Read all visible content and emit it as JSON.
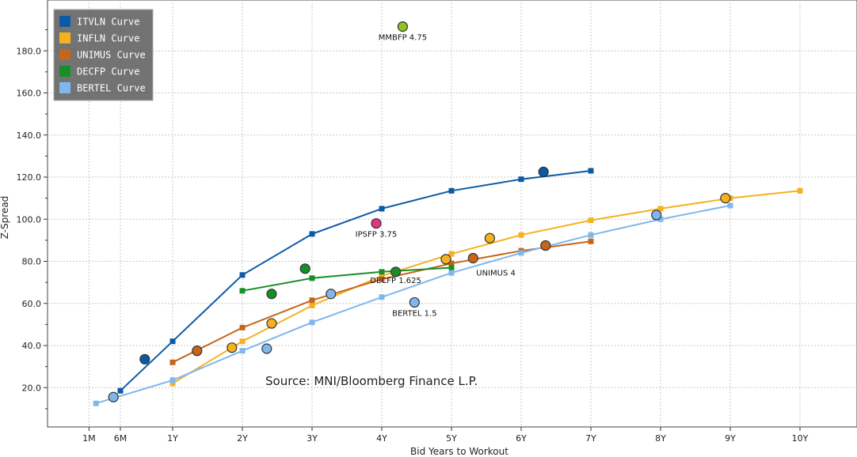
{
  "chart_data": {
    "type": "line",
    "title": "",
    "xlabel": "Bid Years to Workout",
    "ylabel": "Z-Spread",
    "xlim": [
      -1.0,
      10.6
    ],
    "ylim": [
      0,
      200
    ],
    "x_ticks": [
      {
        "label": "1M",
        "value": -0.2
      },
      {
        "label": "6M",
        "value": 0.25
      },
      {
        "label": "1Y",
        "value": 1
      },
      {
        "label": "2Y",
        "value": 2
      },
      {
        "label": "3Y",
        "value": 3
      },
      {
        "label": "4Y",
        "value": 4
      },
      {
        "label": "5Y",
        "value": 5
      },
      {
        "label": "6Y",
        "value": 6
      },
      {
        "label": "7Y",
        "value": 7
      },
      {
        "label": "8Y",
        "value": 8
      },
      {
        "label": "9Y",
        "value": 9
      },
      {
        "label": "10Y",
        "value": 10
      }
    ],
    "y_ticks": [
      {
        "label": "20.0",
        "value": 20
      },
      {
        "label": "40.0",
        "value": 40
      },
      {
        "label": "60.0",
        "value": 60
      },
      {
        "label": "80.0",
        "value": 80
      },
      {
        "label": "100.0",
        "value": 100
      },
      {
        "label": "120.0",
        "value": 120
      },
      {
        "label": "140.0",
        "value": 140
      },
      {
        "label": "160.0",
        "value": 160
      },
      {
        "label": "180.0",
        "value": 180
      }
    ],
    "grid": true,
    "legend_position": "top-left",
    "series": [
      {
        "name": "ITVLN Curve",
        "color": "#0c5aa6",
        "x": [
          0.25,
          1,
          2,
          3,
          4,
          5,
          6,
          7
        ],
        "y": [
          18.5,
          42,
          73.5,
          93,
          105,
          113.5,
          119,
          123
        ],
        "bonds": [
          {
            "x": 0.6,
            "y": 33.5
          },
          {
            "x": 6.32,
            "y": 122.5
          }
        ]
      },
      {
        "name": "INFLN Curve",
        "color": "#f6b120",
        "x": [
          1,
          2,
          3,
          4,
          5,
          6,
          7,
          8,
          9,
          10
        ],
        "y": [
          22,
          42,
          59,
          73,
          83.5,
          92.5,
          99.5,
          105,
          110,
          113.5
        ],
        "bonds": [
          {
            "x": 1.85,
            "y": 39
          },
          {
            "x": 2.42,
            "y": 50.5
          },
          {
            "x": 4.92,
            "y": 81
          },
          {
            "x": 5.55,
            "y": 91
          },
          {
            "x": 8.93,
            "y": 110
          }
        ]
      },
      {
        "name": "UNIMUS Curve",
        "color": "#c5661a",
        "x": [
          1,
          2,
          3,
          4,
          5,
          6,
          7
        ],
        "y": [
          32,
          48.5,
          61.5,
          71.5,
          79,
          85,
          89.5
        ],
        "bonds": [
          {
            "x": 1.35,
            "y": 37.5
          },
          {
            "x": 5.31,
            "y": 81.5
          },
          {
            "x": 6.35,
            "y": 87.5
          }
        ]
      },
      {
        "name": "DECFP Curve",
        "color": "#178f26",
        "x": [
          2,
          3,
          4,
          5
        ],
        "y": [
          66,
          72,
          75,
          77
        ],
        "bonds": [
          {
            "x": 2.42,
            "y": 64.5
          },
          {
            "x": 2.9,
            "y": 76.5
          },
          {
            "x": 4.2,
            "y": 75
          }
        ]
      },
      {
        "name": "BERTEL Curve",
        "color": "#7fb7ec",
        "x": [
          -0.1,
          1,
          2,
          3,
          4,
          5,
          6,
          7,
          8,
          9
        ],
        "y": [
          12.5,
          23.5,
          37.5,
          51,
          63,
          74.5,
          84,
          92.5,
          100,
          106.5
        ],
        "bonds": [
          {
            "x": 0.15,
            "y": 15.5
          },
          {
            "x": 2.35,
            "y": 38.5
          },
          {
            "x": 3.27,
            "y": 64.5
          },
          {
            "x": 7.94,
            "y": 102
          }
        ]
      }
    ],
    "annotations": [
      {
        "label": "MMBFP 4.75",
        "x": 4.3,
        "y": 191.5,
        "color": "#8fc31f"
      },
      {
        "label": "IPSFP 3.75",
        "x": 3.92,
        "y": 98,
        "color": "#e0357f"
      },
      {
        "label": "DECFP 1.625",
        "x": 4.2,
        "y": 75,
        "color": ""
      },
      {
        "label": "UNIMUS 4",
        "x": 5.31,
        "y": 81.5,
        "color": ""
      },
      {
        "label": "BERTEL 1.5",
        "x": 4.47,
        "y": 60.5,
        "color": "#7fb7ec"
      }
    ],
    "source_text": "Source: MNI/Bloomberg Finance L.P."
  }
}
